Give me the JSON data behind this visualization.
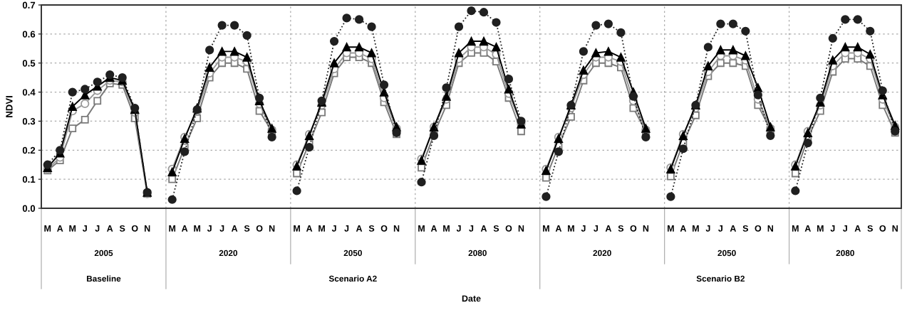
{
  "chart_data": {
    "type": "line",
    "ylabel": "NDVI",
    "categories": [
      "M",
      "A",
      "M",
      "J",
      "J",
      "A",
      "S",
      "O",
      "N",
      null,
      "M",
      "A",
      "M",
      "J",
      "J",
      "A",
      "S",
      "O",
      "N",
      null,
      "M",
      "A",
      "M",
      "J",
      "J",
      "A",
      "S",
      "O",
      "N",
      null,
      "M",
      "A",
      "M",
      "J",
      "J",
      "A",
      "S",
      "O",
      "N",
      null,
      "M",
      "A",
      "M",
      "J",
      "J",
      "A",
      "S",
      "O",
      "N",
      null,
      "M",
      "A",
      "M",
      "J",
      "J",
      "A",
      "S",
      "O",
      "N",
      null,
      "M",
      "A",
      "M",
      "J",
      "J",
      "A",
      "S",
      "O",
      "N"
    ],
    "annotations": [
      "2005",
      "2020",
      "2050",
      "2080",
      "2020",
      "2050",
      "2080",
      "Baseline",
      "Scenario A2",
      "Scenario B2",
      "Date"
    ],
    "ylim": [
      0,
      0.7
    ],
    "yticks": [
      {
        "value": 0,
        "label": "0.0"
      },
      0.1,
      0.2,
      0.3,
      0.4,
      0.5,
      0.6,
      0.7
    ],
    "grid": true,
    "series": [
      {
        "color": "#7a7a7a",
        "marker": "square",
        "line_style": "solid",
        "values": [
          0.13,
          0.165,
          0.275,
          0.305,
          0.37,
          0.43,
          0.425,
          0.31,
          0.05,
          null,
          0.1,
          0.21,
          0.31,
          0.45,
          0.5,
          0.5,
          0.48,
          0.335,
          0.265,
          null,
          0.12,
          0.225,
          0.33,
          0.465,
          0.52,
          0.52,
          0.5,
          0.365,
          0.255,
          null,
          0.14,
          0.255,
          0.355,
          0.5,
          0.535,
          0.535,
          0.505,
          0.38,
          0.265,
          null,
          0.105,
          0.215,
          0.315,
          0.44,
          0.5,
          0.5,
          0.485,
          0.345,
          0.265,
          null,
          0.11,
          0.225,
          0.32,
          0.455,
          0.5,
          0.5,
          0.49,
          0.355,
          0.27,
          null,
          0.12,
          0.24,
          0.335,
          0.47,
          0.515,
          0.515,
          0.49,
          0.355,
          0.26
        ]
      },
      {
        "color": "#9a9a9a",
        "marker": "circle",
        "line_style": "solid",
        "values": [
          0.135,
          0.175,
          0.335,
          0.36,
          0.405,
          0.44,
          0.435,
          0.33,
          0.05,
          null,
          0.135,
          0.245,
          0.335,
          0.465,
          0.52,
          0.52,
          0.505,
          0.36,
          0.27,
          null,
          0.15,
          0.255,
          0.355,
          0.48,
          0.535,
          0.535,
          0.515,
          0.38,
          0.275,
          null,
          0.17,
          0.28,
          0.375,
          0.515,
          0.555,
          0.555,
          0.53,
          0.395,
          0.29,
          null,
          0.135,
          0.245,
          0.345,
          0.46,
          0.52,
          0.52,
          0.505,
          0.37,
          0.27,
          null,
          0.14,
          0.255,
          0.345,
          0.47,
          0.525,
          0.525,
          0.51,
          0.375,
          0.275,
          null,
          0.15,
          0.265,
          0.355,
          0.49,
          0.535,
          0.535,
          0.515,
          0.375,
          0.28
        ]
      },
      {
        "color": "#000000",
        "marker": "triangle",
        "line_style": "solid",
        "values": [
          0.14,
          0.19,
          0.35,
          0.39,
          0.42,
          0.45,
          0.44,
          0.34,
          0.055,
          null,
          0.125,
          0.24,
          0.345,
          0.485,
          0.54,
          0.54,
          0.52,
          0.37,
          0.275,
          null,
          0.145,
          0.25,
          0.365,
          0.5,
          0.555,
          0.555,
          0.535,
          0.4,
          0.28,
          null,
          0.165,
          0.28,
          0.385,
          0.535,
          0.575,
          0.575,
          0.555,
          0.41,
          0.29,
          null,
          0.13,
          0.24,
          0.355,
          0.475,
          0.535,
          0.54,
          0.52,
          0.4,
          0.275,
          null,
          0.135,
          0.25,
          0.355,
          0.49,
          0.545,
          0.545,
          0.525,
          0.415,
          0.28,
          null,
          0.145,
          0.26,
          0.365,
          0.51,
          0.555,
          0.555,
          0.53,
          0.39,
          0.285
        ]
      },
      {
        "color": "#202020",
        "marker": "circle",
        "line_style": "dotted",
        "values": [
          0.15,
          0.2,
          0.4,
          0.41,
          0.435,
          0.46,
          0.45,
          0.345,
          0.055,
          null,
          0.03,
          0.195,
          0.34,
          0.545,
          0.63,
          0.63,
          0.595,
          0.38,
          0.245,
          null,
          0.06,
          0.21,
          0.37,
          0.575,
          0.655,
          0.65,
          0.625,
          0.425,
          0.26,
          null,
          0.09,
          0.25,
          0.415,
          0.625,
          0.68,
          0.675,
          0.64,
          0.445,
          0.3,
          null,
          0.04,
          0.195,
          0.355,
          0.54,
          0.63,
          0.635,
          0.605,
          0.385,
          0.245,
          null,
          0.04,
          0.205,
          0.355,
          0.555,
          0.635,
          0.635,
          0.61,
          0.39,
          0.25,
          null,
          0.06,
          0.225,
          0.38,
          0.585,
          0.65,
          0.65,
          0.61,
          0.405,
          0.265
        ]
      }
    ]
  }
}
